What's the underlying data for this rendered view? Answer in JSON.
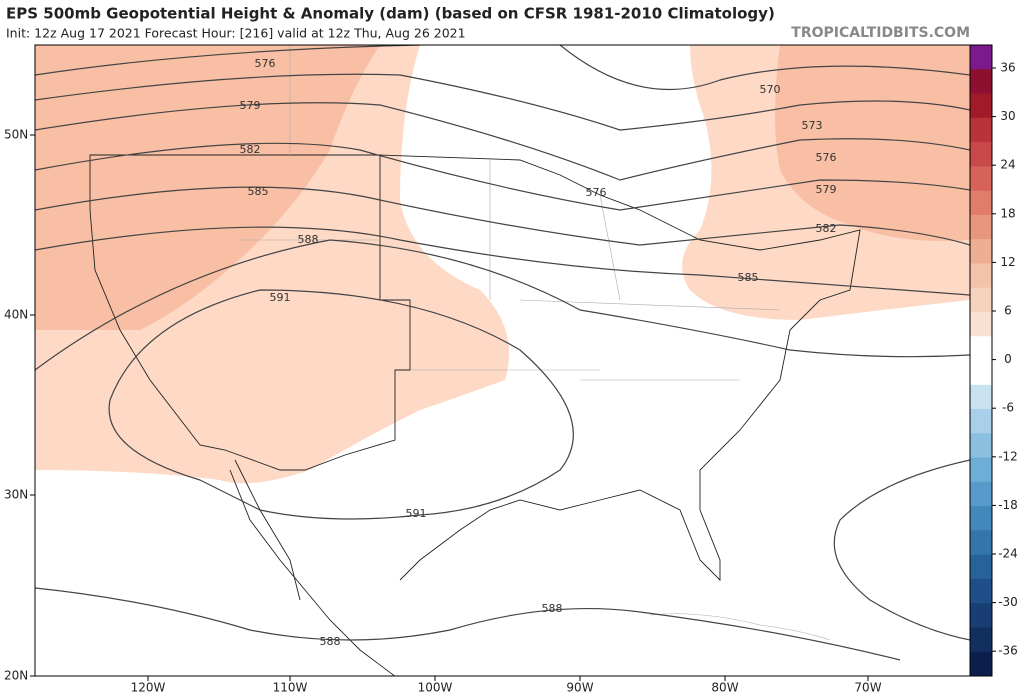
{
  "header": {
    "title": "EPS 500mb Geopotential Height & Anomaly (dam) (based on CFSR 1981-2010 Climatology)",
    "subtitle": "Init: 12z Aug 17 2021   Forecast Hour: [216]   valid at 12z Thu, Aug 26 2021",
    "source": "TROPICALTIDBITS.COM"
  },
  "map": {
    "lat_labels": [
      "50N",
      "40N",
      "30N",
      "20N"
    ],
    "lon_labels": [
      "120W",
      "110W",
      "100W",
      "90W",
      "80W",
      "70W"
    ],
    "contour_labels": [
      "576",
      "579",
      "582",
      "585",
      "588",
      "591",
      "576",
      "570",
      "573",
      "576",
      "579",
      "582",
      "585",
      "591",
      "588",
      "588"
    ]
  },
  "colorbar": {
    "labels": [
      "36",
      "30",
      "24",
      "18",
      "12",
      "6",
      "0",
      "-6",
      "-12",
      "-18",
      "-24",
      "-30",
      "-36"
    ]
  }
}
